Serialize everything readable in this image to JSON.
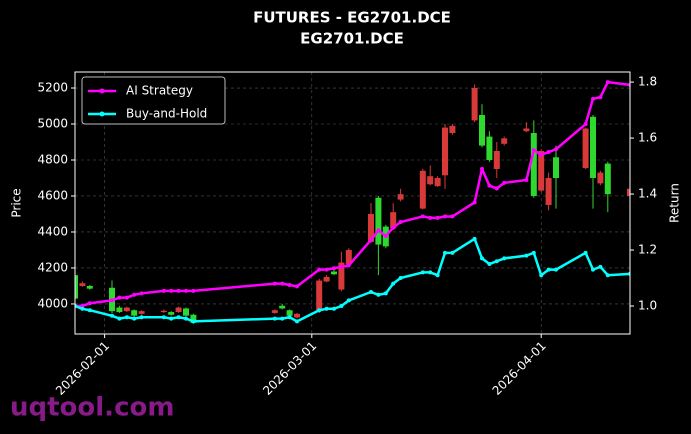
{
  "chart_data": {
    "type": "candlestick",
    "title": "FUTURES - EG2701.DCE",
    "subtitle": "EG2701.DCE",
    "ylabel": "Price",
    "y2label": "Return",
    "watermark": "uqtool.com",
    "x": [
      "2026-01-28",
      "2026-01-29",
      "2026-01-30",
      "2026-02-02",
      "2026-02-03",
      "2026-02-04",
      "2026-02-05",
      "2026-02-06",
      "2026-02-09",
      "2026-02-10",
      "2026-02-11",
      "2026-02-12",
      "2026-02-13",
      "2026-02-24",
      "2026-02-25",
      "2026-02-26",
      "2026-02-27",
      "2026-03-02",
      "2026-03-03",
      "2026-03-04",
      "2026-03-05",
      "2026-03-06",
      "2026-03-09",
      "2026-03-10",
      "2026-03-11",
      "2026-03-12",
      "2026-03-13",
      "2026-03-16",
      "2026-03-17",
      "2026-03-18",
      "2026-03-19",
      "2026-03-20",
      "2026-03-23",
      "2026-03-24",
      "2026-03-25",
      "2026-03-26",
      "2026-03-27",
      "2026-03-30",
      "2026-03-31",
      "2026-04-01",
      "2026-04-02",
      "2026-04-03",
      "2026-04-07",
      "2026-04-08",
      "2026-04-09",
      "2026-04-10",
      "2026-04-13"
    ],
    "open": [
      4030,
      4115,
      4085,
      3960,
      3955,
      3980,
      3935,
      3960,
      3962,
      3940,
      3980,
      3935,
      3895,
      3965,
      3975,
      3935,
      3945,
      4130,
      4150,
      4165,
      4230,
      4300,
      4500,
      4330,
      4320,
      4510,
      4610,
      4740,
      4710,
      4700,
      4980,
      4990,
      5200,
      4880,
      4800,
      4850,
      4920,
      4975,
      4600,
      4850,
      4700,
      4700,
      4975,
      4700,
      4730,
      4610,
      4640
    ],
    "high": [
      4170,
      4125,
      4105,
      4130,
      3990,
      3985,
      3970,
      3965,
      3970,
      3960,
      3985,
      3980,
      3945,
      3970,
      4000,
      3970,
      3950,
      4140,
      4160,
      4190,
      4290,
      4310,
      4560,
      4600,
      4440,
      4560,
      4640,
      4750,
      4770,
      4710,
      5000,
      5000,
      5220,
      5110,
      4960,
      4900,
      4930,
      5010,
      5020,
      4860,
      4730,
      4880,
      4980,
      5050,
      4740,
      4790,
      4650
    ],
    "low": [
      4010,
      4095,
      4080,
      3950,
      3950,
      3955,
      3930,
      3940,
      3950,
      3935,
      3950,
      3930,
      3890,
      3945,
      3970,
      3930,
      3920,
      3950,
      4120,
      4160,
      4070,
      4215,
      4340,
      4160,
      4310,
      4410,
      4570,
      4525,
      4660,
      4650,
      4640,
      4940,
      5010,
      4870,
      4790,
      4700,
      4880,
      4955,
      4590,
      4620,
      4520,
      4530,
      4750,
      4530,
      4660,
      4510,
      4595
    ],
    "close": [
      4160,
      4100,
      4100,
      4090,
      3980,
      3960,
      3965,
      3945,
      3955,
      3955,
      3955,
      3975,
      3940,
      3950,
      3990,
      3965,
      3925,
      3960,
      4125,
      4180,
      4080,
      4220,
      4345,
      4590,
      4430,
      4420,
      4580,
      4530,
      4665,
      4655,
      4715,
      4950,
      5020,
      5050,
      4930,
      4750,
      4890,
      4960,
      4950,
      4630,
      4550,
      4815,
      4755,
      5040,
      4670,
      4780,
      4600
    ],
    "up_color": "#2fd82f",
    "down_color": "#d83a3a",
    "series": [
      {
        "name": "AI Strategy",
        "color": "#ff00ff",
        "axis": "y2",
        "values": [
          1.0,
          1.0,
          1.01,
          1.02,
          1.03,
          1.03,
          1.04,
          1.045,
          1.054,
          1.054,
          1.054,
          1.054,
          1.054,
          1.08,
          1.08,
          1.075,
          1.07,
          1.13,
          1.13,
          1.135,
          1.14,
          1.145,
          1.236,
          1.27,
          1.25,
          1.28,
          1.3,
          1.32,
          1.315,
          1.315,
          1.32,
          1.32,
          1.37,
          1.49,
          1.43,
          1.42,
          1.44,
          1.45,
          1.557,
          1.54,
          1.55,
          1.56,
          1.65,
          1.74,
          1.746,
          1.8,
          1.79
        ]
      },
      {
        "name": "Buy-and-Hold",
        "color": "#00ffff",
        "axis": "y2",
        "values": [
          1.0,
          0.99,
          0.985,
          0.965,
          0.955,
          0.96,
          0.955,
          0.96,
          0.96,
          0.955,
          0.96,
          0.955,
          0.945,
          0.955,
          0.955,
          0.96,
          0.945,
          0.985,
          0.99,
          0.99,
          1.0,
          1.02,
          1.05,
          1.04,
          1.045,
          1.08,
          1.1,
          1.12,
          1.12,
          1.11,
          1.19,
          1.19,
          1.24,
          1.17,
          1.15,
          1.16,
          1.17,
          1.18,
          1.19,
          1.11,
          1.13,
          1.13,
          1.19,
          1.13,
          1.14,
          1.11,
          1.115
        ]
      }
    ],
    "xlim": [
      "2026-01-28",
      "2026-04-13"
    ],
    "xticks": [
      "2026-02-01",
      "2026-03-01",
      "2026-04-01"
    ],
    "ylim": [
      3833,
      5289
    ],
    "yticks": [
      4000,
      4200,
      4400,
      4600,
      4800,
      5000,
      5200
    ],
    "y2lim": [
      0.9,
      1.836
    ],
    "y2ticks": [
      {
        "value": 1.0,
        "label": "1.0"
      },
      1.2,
      1.4,
      1.6,
      1.8
    ],
    "grid": true,
    "legend": "upper left"
  }
}
